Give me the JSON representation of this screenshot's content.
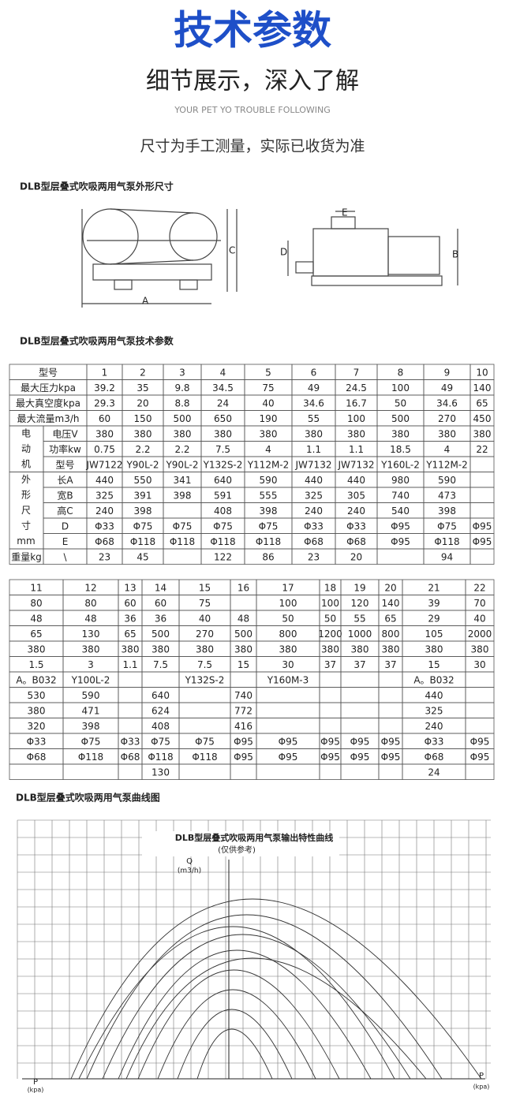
{
  "header": {
    "title": "技术参数",
    "subtitle": "细节展示，深入了解",
    "tagline": "YOUR PET YO TROUBLE FOLLOWING",
    "note": "尺寸为手工测量，实际已收货为准"
  },
  "outline": {
    "heading": "DLB型层叠式吹吸两用气泵外形尺寸",
    "labels": {
      "a": "A",
      "c": "C",
      "b": "B",
      "d": "D",
      "e": "E"
    }
  },
  "params": {
    "heading": "DLB型层叠式吹吸两用气泵技术参数"
  },
  "table1": {
    "header_label": "型号",
    "header": [
      1,
      2,
      3,
      4,
      5,
      6,
      7,
      8,
      9,
      10
    ],
    "rows": [
      {
        "label": "最大压力kpa",
        "values": [
          39.2,
          35,
          9.8,
          34.5,
          75,
          49,
          24.5,
          100,
          49,
          140
        ]
      },
      {
        "label": "最大真空度kpa",
        "values": [
          29.3,
          20,
          8.8,
          24,
          40,
          34.6,
          16.7,
          50,
          34.6,
          65
        ]
      },
      {
        "label": "最大流量m3/h",
        "values": [
          60,
          150,
          500,
          650,
          190,
          55,
          100,
          500,
          270,
          450
        ]
      }
    ],
    "motor": {
      "label": [
        "电",
        "动",
        "机"
      ],
      "rows": [
        {
          "label": "电压V",
          "values": [
            380,
            380,
            380,
            380,
            380,
            380,
            380,
            380,
            380,
            380
          ]
        },
        {
          "label": "功率kw",
          "values": [
            0.75,
            2.2,
            2.2,
            7.5,
            4,
            1.1,
            1.1,
            18.5,
            4,
            22
          ]
        },
        {
          "label": "型号",
          "values": [
            "JW7122",
            "Y90L-2",
            "Y90L-2",
            "Y132S-2",
            "Y112M-2",
            "JW7132",
            "JW7132",
            "Y160L-2",
            "Y112M-2",
            null
          ]
        }
      ]
    },
    "size": {
      "label": [
        "外",
        "形",
        "尺",
        "寸",
        "mm"
      ],
      "rows": [
        {
          "label": "长A",
          "values": [
            440,
            550,
            341,
            640,
            590,
            440,
            440,
            980,
            590,
            null
          ]
        },
        {
          "label": "宽B",
          "values": [
            325,
            391,
            398,
            591,
            555,
            325,
            305,
            740,
            473,
            null
          ]
        },
        {
          "label": "高C",
          "values": [
            240,
            398,
            null,
            408,
            398,
            240,
            240,
            540,
            398,
            null
          ]
        },
        {
          "label": "D",
          "values": [
            "Φ33",
            "Φ75",
            "Φ75",
            "Φ75",
            "Φ75",
            "Φ33",
            "Φ33",
            "Φ95",
            "Φ75",
            "Φ95"
          ]
        },
        {
          "label": "E",
          "values": [
            "Φ68",
            "Φ118",
            "Φ118",
            "Φ118",
            "Φ118",
            "Φ68",
            "Φ68",
            "Φ95",
            "Φ118",
            "Φ95"
          ]
        }
      ]
    },
    "weight": {
      "label": "重量kg",
      "sub": "\\",
      "values": [
        23,
        45,
        null,
        122,
        86,
        23,
        20,
        null,
        94,
        null
      ]
    }
  },
  "table2": {
    "header": [
      11,
      12,
      13,
      14,
      15,
      16,
      17,
      18,
      19,
      20,
      21,
      22
    ],
    "rows": [
      [
        80,
        80,
        60,
        60,
        75,
        null,
        100,
        100,
        120,
        140,
        39,
        70
      ],
      [
        48,
        48,
        36,
        36,
        40,
        48,
        50,
        50,
        55,
        65,
        29,
        40
      ],
      [
        65,
        130,
        65,
        500,
        270,
        500,
        800,
        1200,
        1000,
        800,
        105,
        2000
      ],
      [
        380,
        380,
        380,
        380,
        380,
        380,
        380,
        380,
        380,
        380,
        380,
        380
      ],
      [
        1.5,
        3,
        1.1,
        7.5,
        7.5,
        15,
        30,
        37,
        37,
        37,
        15,
        30
      ],
      [
        "A。B032",
        "Y100L-2",
        null,
        null,
        "Y132S-2",
        null,
        "Y160M-3",
        null,
        null,
        null,
        "A。B032",
        null
      ],
      [
        530,
        590,
        null,
        640,
        null,
        740,
        null,
        null,
        null,
        null,
        440,
        null
      ],
      [
        380,
        471,
        null,
        624,
        null,
        772,
        null,
        null,
        null,
        null,
        325,
        null
      ],
      [
        320,
        398,
        null,
        408,
        null,
        416,
        null,
        null,
        null,
        null,
        240,
        null
      ],
      [
        "Φ33",
        "Φ75",
        "Φ33",
        "Φ75",
        "Φ75",
        "Φ95",
        "Φ95",
        "Φ95",
        "Φ95",
        "Φ95",
        "Φ33",
        "Φ95"
      ],
      [
        "Φ68",
        "Φ118",
        "Φ68",
        "Φ118",
        "Φ118",
        "Φ95",
        "Φ95",
        "Φ95",
        "Φ95",
        "Φ95",
        "Φ68",
        "Φ95"
      ],
      [
        null,
        null,
        null,
        130,
        null,
        null,
        null,
        null,
        null,
        null,
        24,
        null
      ]
    ]
  },
  "curves": {
    "heading": "DLB型层叠式吹吸两用气泵曲线图",
    "title": "DLB型层叠式吹吸两用气泵输出特性曲线",
    "subtitle": "(仅供参考)",
    "q_label": "Q",
    "q_unit": "(m3/h)",
    "p_left": "P",
    "p_right": "P",
    "p_unit_left": "(kpa)",
    "p_unit_right": "(kpa)"
  }
}
